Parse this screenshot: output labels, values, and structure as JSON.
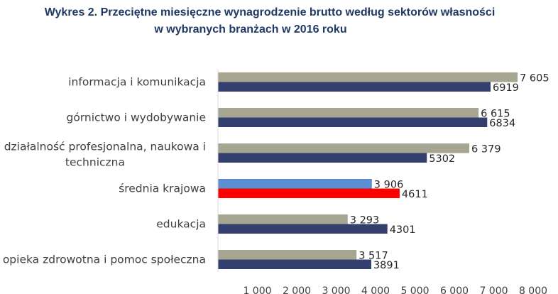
{
  "chart_data": {
    "type": "bar",
    "orientation": "horizontal",
    "title_line1": "Wykres 2. Przeciętne miesięczne wynagrodzenie brutto według sektorów własności",
    "title_line2": "w wybranych branżach w 2016 roku",
    "categories": [
      {
        "lines": [
          "informacja i komunikacja"
        ]
      },
      {
        "lines": [
          "górnictwo i wydobywanie"
        ]
      },
      {
        "lines": [
          "działalność profesjonalna, naukowa i",
          "techniczna"
        ]
      },
      {
        "lines": [
          "średnia krajowa"
        ]
      },
      {
        "lines": [
          "edukacja"
        ]
      },
      {
        "lines": [
          "opieka zdrowotna i pomoc społeczna"
        ]
      }
    ],
    "series": [
      {
        "values": [
          7605,
          6615,
          6379,
          3906,
          3293,
          3517
        ],
        "labels": [
          "7 605",
          "6 615",
          "6 379",
          "3 906",
          "3 293",
          "3 517"
        ],
        "color": "#a5a592",
        "highlight_color": "#5b8fd1"
      },
      {
        "values": [
          6919,
          6834,
          5302,
          4611,
          4301,
          3891
        ],
        "labels": [
          "6919",
          "6834",
          "5302",
          "4611",
          "4301",
          "3891"
        ],
        "color": "#333f6e",
        "highlight_color": "#ff0000"
      }
    ],
    "highlight_category_index": 3,
    "xlim": [
      0,
      8000
    ],
    "xticks": [
      1000,
      2000,
      3000,
      4000,
      5000,
      6000,
      7000,
      8000
    ],
    "xtick_labels": [
      "1 000",
      "2 000",
      "3 000",
      "4 000",
      "5 000",
      "6 000",
      "7 000",
      "8 000"
    ],
    "grid": false,
    "legend": "none"
  }
}
